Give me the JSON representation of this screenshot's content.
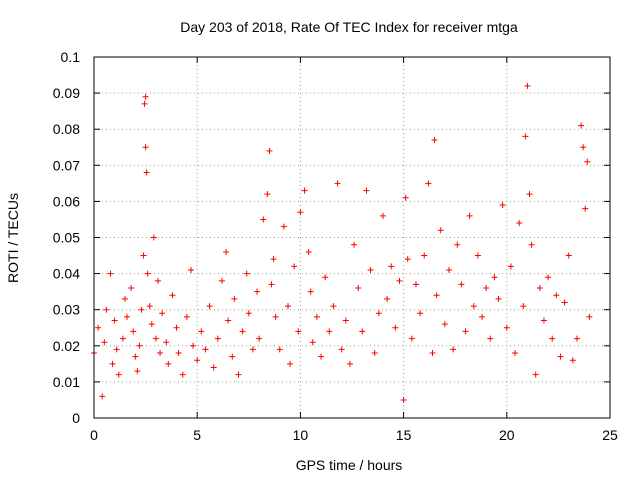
{
  "chart_data": {
    "type": "scatter",
    "title": "Day 203 of 2018, Rate Of TEC Index for receiver mtga",
    "xlabel": "GPS time / hours",
    "ylabel": "ROTI / TECUs",
    "xlim": [
      0,
      25
    ],
    "ylim": [
      0,
      0.1
    ],
    "xticks": [
      0,
      5,
      10,
      15,
      20,
      25
    ],
    "xtick_labels": [
      "0",
      "5",
      "10",
      "15",
      "20",
      "25"
    ],
    "yticks": [
      0,
      0.01,
      0.02,
      0.03,
      0.04,
      0.05,
      0.06,
      0.07,
      0.08,
      0.09,
      0.1
    ],
    "ytick_labels": [
      "0",
      "0.01",
      "0.02",
      "0.03",
      "0.04",
      "0.05",
      "0.06",
      "0.07",
      "0.08",
      "0.09",
      "0.1"
    ],
    "grid": true,
    "marker": "plus",
    "color": "#ff0000",
    "series": [
      {
        "x": [
          0.0,
          0.2,
          0.4,
          0.5,
          0.6,
          0.8,
          0.9,
          1.0,
          1.1,
          1.2,
          1.4,
          1.5,
          1.6,
          1.8,
          1.9,
          2.0,
          2.1,
          2.2,
          2.3,
          2.4,
          2.45,
          2.5,
          2.5,
          2.55,
          2.6,
          2.7,
          2.8,
          2.9,
          3.0,
          3.1,
          3.2,
          3.3,
          3.5,
          3.6,
          3.8,
          4.0,
          4.1,
          4.3,
          4.5,
          4.7,
          4.8,
          5.0,
          5.2,
          5.4,
          5.6,
          5.8,
          6.0,
          6.2,
          6.4,
          6.5,
          6.7,
          6.8,
          7.0,
          7.2,
          7.4,
          7.5,
          7.7,
          7.9,
          8.0,
          8.2,
          8.4,
          8.5,
          8.6,
          8.7,
          8.8,
          9.0,
          9.2,
          9.4,
          9.5,
          9.7,
          9.9,
          10.0,
          10.2,
          10.4,
          10.5,
          10.6,
          10.8,
          11.0,
          11.2,
          11.4,
          11.6,
          11.8,
          12.0,
          12.2,
          12.4,
          12.6,
          12.8,
          13.0,
          13.2,
          13.4,
          13.6,
          13.8,
          14.0,
          14.2,
          14.4,
          14.6,
          14.8,
          15.0,
          15.1,
          15.2,
          15.4,
          15.6,
          15.8,
          16.0,
          16.2,
          16.4,
          16.5,
          16.6,
          16.8,
          17.0,
          17.2,
          17.4,
          17.6,
          17.8,
          18.0,
          18.2,
          18.4,
          18.6,
          18.8,
          19.0,
          19.2,
          19.4,
          19.6,
          19.8,
          20.0,
          20.2,
          20.4,
          20.6,
          20.8,
          20.9,
          21.0,
          21.1,
          21.2,
          21.4,
          21.6,
          21.8,
          22.0,
          22.2,
          22.4,
          22.6,
          22.8,
          23.0,
          23.2,
          23.4,
          23.6,
          23.7,
          23.8,
          23.9,
          24.0
        ],
        "y": [
          0.018,
          0.025,
          0.006,
          0.021,
          0.03,
          0.04,
          0.015,
          0.027,
          0.019,
          0.012,
          0.022,
          0.033,
          0.028,
          0.036,
          0.024,
          0.017,
          0.013,
          0.02,
          0.03,
          0.045,
          0.087,
          0.089,
          0.075,
          0.068,
          0.04,
          0.031,
          0.026,
          0.05,
          0.022,
          0.038,
          0.018,
          0.029,
          0.021,
          0.015,
          0.034,
          0.025,
          0.018,
          0.012,
          0.028,
          0.041,
          0.02,
          0.016,
          0.024,
          0.019,
          0.031,
          0.014,
          0.022,
          0.038,
          0.046,
          0.027,
          0.017,
          0.033,
          0.012,
          0.024,
          0.04,
          0.029,
          0.019,
          0.035,
          0.022,
          0.055,
          0.062,
          0.074,
          0.037,
          0.044,
          0.028,
          0.019,
          0.053,
          0.031,
          0.015,
          0.042,
          0.024,
          0.057,
          0.063,
          0.046,
          0.035,
          0.021,
          0.028,
          0.017,
          0.039,
          0.024,
          0.031,
          0.065,
          0.019,
          0.027,
          0.015,
          0.048,
          0.036,
          0.024,
          0.063,
          0.041,
          0.018,
          0.029,
          0.056,
          0.033,
          0.042,
          0.025,
          0.038,
          0.005,
          0.061,
          0.044,
          0.022,
          0.037,
          0.029,
          0.045,
          0.065,
          0.018,
          0.077,
          0.034,
          0.052,
          0.026,
          0.041,
          0.019,
          0.048,
          0.037,
          0.024,
          0.056,
          0.031,
          0.045,
          0.028,
          0.036,
          0.022,
          0.039,
          0.033,
          0.059,
          0.025,
          0.042,
          0.018,
          0.054,
          0.031,
          0.078,
          0.092,
          0.062,
          0.048,
          0.012,
          0.036,
          0.027,
          0.039,
          0.022,
          0.034,
          0.017,
          0.032,
          0.045,
          0.016,
          0.022,
          0.081,
          0.075,
          0.058,
          0.071,
          0.028
        ]
      }
    ]
  }
}
